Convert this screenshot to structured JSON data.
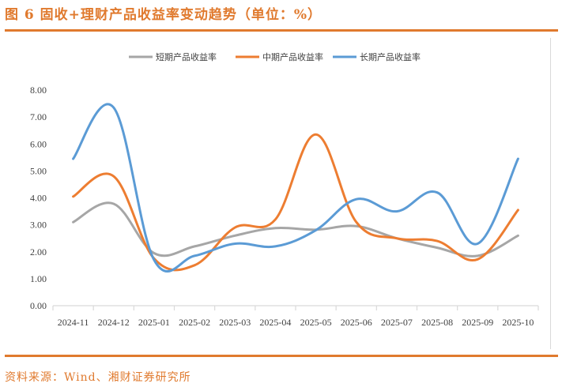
{
  "figure": {
    "title": "图 6 固收+理财产品收益率变动趋势（单位：%）",
    "source": "资料来源：Wind、湘财证券研究所"
  },
  "colors": {
    "accent": "#e07a2e",
    "short": "#a6a6a6",
    "mid": "#ed7d31",
    "long": "#5b9bd5"
  },
  "legend": [
    {
      "name": "短期产品收益率",
      "color": "#a6a6a6"
    },
    {
      "name": "中期产品收益率",
      "color": "#ed7d31"
    },
    {
      "name": "长期产品收益率",
      "color": "#5b9bd5"
    }
  ],
  "chart_data": {
    "type": "line",
    "title": "固收+理财产品收益率变动趋势（单位：%）",
    "xlabel": "",
    "ylabel": "",
    "ylim": [
      0,
      8
    ],
    "yticks": [
      "0.00",
      "1.00",
      "2.00",
      "3.00",
      "4.00",
      "5.00",
      "6.00",
      "7.00",
      "8.00"
    ],
    "grid": false,
    "legend_position": "top",
    "smoothed": true,
    "categories": [
      "2024-11",
      "2024-12",
      "2025-01",
      "2025-02",
      "2025-03",
      "2025-04",
      "2025-05",
      "2025-06",
      "2025-07",
      "2025-08",
      "2025-09",
      "2025-10"
    ],
    "series": [
      {
        "name": "短期产品收益率",
        "values": [
          3.1,
          3.78,
          1.95,
          2.2,
          2.6,
          2.88,
          2.82,
          2.95,
          2.5,
          2.15,
          1.85,
          2.6
        ]
      },
      {
        "name": "中期产品收益率",
        "values": [
          4.05,
          4.8,
          1.75,
          1.5,
          2.9,
          3.2,
          6.35,
          3.1,
          2.5,
          2.4,
          1.72,
          3.55
        ]
      },
      {
        "name": "长期产品收益率",
        "values": [
          5.45,
          7.35,
          1.7,
          1.85,
          2.3,
          2.2,
          2.8,
          3.95,
          3.5,
          4.2,
          2.3,
          5.45
        ]
      }
    ]
  }
}
